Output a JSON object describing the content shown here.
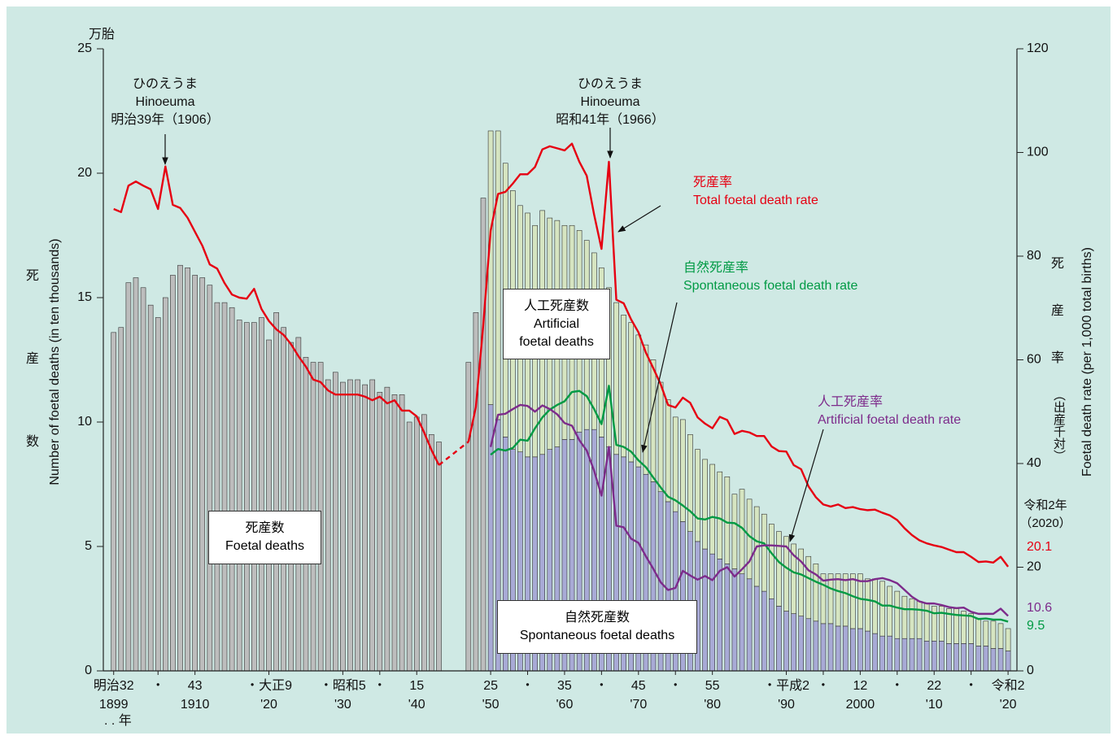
{
  "chart_data": {
    "type": "bar",
    "y_unit": "万胎",
    "y_label": "Number of foetal deaths (in ten thousands)",
    "y_label_ja": "死\n産\n数",
    "y2_label": "Foetal death rate (per 1,000 total births)",
    "y2_label_ja": "死\n産\n率",
    "y2_label_ja_note": "（出産千対）",
    "x_unit": ". . 年",
    "end_year_label": "令和2年\n（2020）",
    "annotations": [
      "ひのえうま\nHinoeuma\n明治39年（1906）",
      "ひのえうま\nHinoeuma\n昭和41年（1966）"
    ],
    "xlim": [
      1897.6,
      2021.2
    ],
    "ylim": [
      0,
      25
    ],
    "y2lim": [
      0,
      120
    ],
    "yticks": [
      0,
      5,
      10,
      15,
      20,
      25
    ],
    "y2ticks": [
      0,
      20,
      40,
      60,
      80,
      100,
      120
    ],
    "xticks": [
      {
        "value": 1899,
        "label": "明治32\n1899"
      },
      {
        "value": 1905,
        "label": "・"
      },
      {
        "value": 1910,
        "label": "43\n1910"
      },
      {
        "value": 1920,
        "label": "・大正9\n'20"
      },
      {
        "value": 1930,
        "label": "・昭和5\n'30"
      },
      {
        "value": 1935,
        "label": "・"
      },
      {
        "value": 1940,
        "label": "15\n'40"
      },
      {
        "value": 1950,
        "label": "25\n'50"
      },
      {
        "value": 1955,
        "label": "・"
      },
      {
        "value": 1960,
        "label": "35\n'60"
      },
      {
        "value": 1965,
        "label": "・"
      },
      {
        "value": 1970,
        "label": "45\n'70"
      },
      {
        "value": 1975,
        "label": "・"
      },
      {
        "value": 1980,
        "label": "55\n'80"
      },
      {
        "value": 1990,
        "label": "・平成2\n'90"
      },
      {
        "value": 1995,
        "label": "・"
      },
      {
        "value": 2000,
        "label": "12\n2000"
      },
      {
        "value": 2005,
        "label": "・"
      },
      {
        "value": 2010,
        "label": "22\n'10"
      },
      {
        "value": 2015,
        "label": "・"
      },
      {
        "value": 2020,
        "label": "令和2\n'20"
      }
    ],
    "x": [
      1899,
      1900,
      1901,
      1902,
      1903,
      1904,
      1905,
      1906,
      1907,
      1908,
      1909,
      1910,
      1911,
      1912,
      1913,
      1914,
      1915,
      1916,
      1917,
      1918,
      1919,
      1920,
      1921,
      1922,
      1923,
      1924,
      1925,
      1926,
      1927,
      1928,
      1929,
      1930,
      1931,
      1932,
      1933,
      1934,
      1935,
      1936,
      1937,
      1938,
      1939,
      1940,
      1941,
      1942,
      1943,
      1944,
      1945,
      1946,
      1947,
      1948,
      1949,
      1950,
      1951,
      1952,
      1953,
      1954,
      1955,
      1956,
      1957,
      1958,
      1959,
      1960,
      1961,
      1962,
      1963,
      1964,
      1965,
      1966,
      1967,
      1968,
      1969,
      1970,
      1971,
      1972,
      1973,
      1974,
      1975,
      1976,
      1977,
      1978,
      1979,
      1980,
      1981,
      1982,
      1983,
      1984,
      1985,
      1986,
      1987,
      1988,
      1989,
      1990,
      1991,
      1992,
      1993,
      1994,
      1995,
      1996,
      1997,
      1998,
      1999,
      2000,
      2001,
      2002,
      2003,
      2004,
      2005,
      2006,
      2007,
      2008,
      2009,
      2010,
      2011,
      2012,
      2013,
      2014,
      2015,
      2016,
      2017,
      2018,
      2019,
      2020
    ],
    "series": [
      {
        "name": "死産数\nFoetal deaths",
        "type": "bar",
        "color": "#bdbdbd",
        "values": [
          13.6,
          13.8,
          15.6,
          15.8,
          15.4,
          14.7,
          14.2,
          15.0,
          15.9,
          16.3,
          16.2,
          15.9,
          15.8,
          15.5,
          14.8,
          14.8,
          14.6,
          14.1,
          14.0,
          14.0,
          14.2,
          13.3,
          14.4,
          13.8,
          13.2,
          13.4,
          12.6,
          12.4,
          12.4,
          11.7,
          12.0,
          11.6,
          11.7,
          11.7,
          11.5,
          11.7,
          11.2,
          11.4,
          11.1,
          11.1,
          10.0,
          10.2,
          10.3,
          9.5,
          9.2,
          null,
          null,
          null,
          12.4,
          14.4,
          19.0,
          null,
          null,
          null,
          null,
          null,
          null,
          null,
          null,
          null,
          null,
          null,
          null,
          null,
          null,
          null,
          null,
          null,
          null,
          null,
          null,
          null,
          null,
          null,
          null,
          null,
          null,
          null,
          null,
          null,
          null,
          null,
          null,
          null,
          null,
          null,
          null,
          null,
          null,
          null,
          null,
          null,
          null,
          null,
          null,
          null,
          null,
          null,
          null,
          null,
          null,
          null,
          null,
          null,
          null,
          null,
          null,
          null,
          null,
          null,
          null,
          null,
          null,
          null,
          null,
          null,
          null,
          null,
          null,
          null,
          null,
          null
        ]
      },
      {
        "name": "自然死産数\nSpontaneous foetal deaths",
        "type": "bar",
        "color": "#a8aad6",
        "values": [
          null,
          null,
          null,
          null,
          null,
          null,
          null,
          null,
          null,
          null,
          null,
          null,
          null,
          null,
          null,
          null,
          null,
          null,
          null,
          null,
          null,
          null,
          null,
          null,
          null,
          null,
          null,
          null,
          null,
          null,
          null,
          null,
          null,
          null,
          null,
          null,
          null,
          null,
          null,
          null,
          null,
          null,
          null,
          null,
          null,
          null,
          null,
          null,
          null,
          null,
          null,
          10.7,
          10.1,
          9.4,
          8.9,
          8.8,
          8.6,
          8.6,
          8.7,
          8.9,
          9.0,
          9.3,
          9.3,
          9.6,
          9.7,
          9.7,
          9.4,
          9.0,
          8.7,
          8.6,
          8.4,
          8.2,
          7.9,
          7.6,
          7.2,
          6.8,
          6.4,
          6.0,
          5.6,
          5.2,
          4.9,
          4.7,
          4.5,
          4.3,
          4.1,
          3.9,
          3.7,
          3.4,
          3.2,
          2.9,
          2.6,
          2.4,
          2.3,
          2.2,
          2.1,
          2.0,
          1.9,
          1.9,
          1.8,
          1.8,
          1.7,
          1.7,
          1.6,
          1.5,
          1.4,
          1.4,
          1.3,
          1.3,
          1.3,
          1.3,
          1.2,
          1.2,
          1.2,
          1.1,
          1.1,
          1.1,
          1.1,
          1.0,
          1.0,
          0.9,
          0.9,
          0.8
        ]
      },
      {
        "name": "人工死産数\nArtificial\nfoetal deaths",
        "type": "bar",
        "color": "#d6e5c1",
        "values": [
          null,
          null,
          null,
          null,
          null,
          null,
          null,
          null,
          null,
          null,
          null,
          null,
          null,
          null,
          null,
          null,
          null,
          null,
          null,
          null,
          null,
          null,
          null,
          null,
          null,
          null,
          null,
          null,
          null,
          null,
          null,
          null,
          null,
          null,
          null,
          null,
          null,
          null,
          null,
          null,
          null,
          null,
          null,
          null,
          null,
          null,
          null,
          null,
          null,
          null,
          null,
          11.0,
          11.6,
          11.0,
          10.4,
          9.9,
          9.8,
          9.3,
          9.8,
          9.3,
          9.1,
          8.6,
          8.6,
          8.1,
          7.6,
          7.1,
          6.8,
          6.4,
          6.1,
          5.7,
          5.6,
          5.3,
          5.2,
          4.9,
          4.4,
          4.1,
          3.8,
          4.1,
          3.9,
          3.7,
          3.6,
          3.6,
          3.5,
          3.5,
          3.0,
          3.4,
          3.2,
          3.2,
          3.1,
          3.0,
          3.0,
          3.0,
          2.8,
          2.7,
          2.5,
          2.3,
          2.0,
          2.0,
          2.1,
          2.1,
          2.2,
          2.2,
          2.1,
          2.2,
          2.2,
          2.0,
          1.9,
          1.7,
          1.6,
          1.5,
          1.5,
          1.4,
          1.4,
          1.4,
          1.4,
          1.3,
          1.2,
          1.1,
          1.0,
          1.1,
          1.0,
          0.9
        ]
      },
      {
        "name": "死産率\nTotal foetal death rate",
        "type": "line",
        "axis": "y2",
        "color": "#e60012",
        "gap_style": "dashed",
        "values": [
          89.1,
          88.5,
          93.6,
          94.4,
          93.6,
          92.9,
          89.1,
          97.3,
          89.9,
          89.3,
          87.4,
          84.7,
          82.0,
          78.4,
          77.6,
          74.8,
          72.6,
          72.0,
          71.8,
          73.7,
          69.8,
          67.5,
          65.9,
          64.8,
          63.0,
          60.7,
          58.7,
          56.2,
          55.7,
          54.1,
          53.3,
          53.3,
          53.3,
          53.3,
          52.9,
          52.2,
          52.9,
          51.6,
          52.2,
          50.2,
          50.2,
          49.1,
          46.0,
          42.6,
          39.7,
          null,
          null,
          null,
          44.2,
          50.9,
          66.7,
          84.9,
          92.0,
          92.4,
          94.0,
          95.8,
          95.8,
          97.2,
          100.6,
          101.2,
          100.8,
          100.4,
          101.7,
          98.2,
          95.5,
          88.0,
          81.4,
          98.2,
          71.6,
          70.9,
          67.8,
          65.3,
          61.4,
          58.4,
          55.3,
          51.3,
          50.8,
          52.7,
          51.7,
          48.9,
          47.7,
          46.8,
          49.0,
          48.4,
          45.7,
          46.3,
          46.0,
          45.3,
          45.3,
          43.3,
          42.4,
          42.3,
          39.7,
          38.9,
          35.6,
          33.5,
          32.1,
          31.7,
          32.1,
          31.4,
          31.6,
          31.2,
          31.0,
          31.1,
          30.5,
          30.0,
          29.1,
          27.5,
          26.2,
          25.2,
          24.6,
          24.2,
          23.9,
          23.4,
          22.9,
          22.9,
          22.0,
          21.0,
          21.1,
          20.9,
          22.0,
          20.1
        ]
      },
      {
        "name": "自然死産率\nSpontaneous foetal death rate",
        "type": "line",
        "axis": "y2",
        "color": "#009a44",
        "values": [
          null,
          null,
          null,
          null,
          null,
          null,
          null,
          null,
          null,
          null,
          null,
          null,
          null,
          null,
          null,
          null,
          null,
          null,
          null,
          null,
          null,
          null,
          null,
          null,
          null,
          null,
          null,
          null,
          null,
          null,
          null,
          null,
          null,
          null,
          null,
          null,
          null,
          null,
          null,
          null,
          null,
          null,
          null,
          null,
          null,
          null,
          null,
          null,
          null,
          null,
          null,
          41.7,
          42.8,
          42.5,
          43.0,
          44.6,
          44.4,
          46.8,
          48.9,
          50.4,
          51.3,
          52.0,
          53.8,
          54.0,
          53.0,
          50.5,
          47.6,
          55.0,
          43.6,
          43.2,
          42.3,
          40.6,
          39.3,
          37.3,
          35.4,
          33.6,
          32.9,
          31.9,
          30.8,
          29.4,
          29.2,
          29.7,
          29.4,
          28.6,
          28.5,
          27.6,
          26.0,
          25.0,
          24.6,
          22.7,
          21.0,
          19.9,
          19.0,
          18.6,
          17.9,
          17.2,
          16.6,
          15.9,
          15.4,
          15.0,
          14.4,
          13.9,
          13.7,
          13.4,
          12.6,
          12.6,
          12.2,
          11.9,
          11.9,
          11.8,
          11.6,
          11.1,
          11.2,
          11.0,
          10.8,
          10.7,
          10.6,
          10.0,
          10.1,
          9.9,
          9.9,
          9.5
        ]
      },
      {
        "name": "人工死産率\nArtificial foetal death rate",
        "type": "line",
        "axis": "y2",
        "color": "#7d2b8b",
        "values": [
          null,
          null,
          null,
          null,
          null,
          null,
          null,
          null,
          null,
          null,
          null,
          null,
          null,
          null,
          null,
          null,
          null,
          null,
          null,
          null,
          null,
          null,
          null,
          null,
          null,
          null,
          null,
          null,
          null,
          null,
          null,
          null,
          null,
          null,
          null,
          null,
          null,
          null,
          null,
          null,
          null,
          null,
          null,
          null,
          null,
          null,
          null,
          null,
          null,
          null,
          null,
          43.2,
          49.4,
          49.6,
          50.5,
          51.3,
          51.1,
          50.0,
          51.2,
          50.5,
          49.5,
          47.8,
          47.3,
          44.5,
          42.5,
          38.6,
          33.8,
          43.2,
          28.0,
          27.7,
          25.5,
          24.7,
          22.1,
          19.7,
          17.1,
          15.6,
          16.0,
          19.3,
          18.4,
          17.6,
          18.3,
          17.5,
          19.3,
          20.0,
          18.2,
          19.6,
          21.1,
          24.0,
          24.2,
          24.2,
          24.1,
          24.0,
          22.3,
          21.1,
          19.4,
          18.6,
          17.4,
          17.6,
          17.7,
          17.5,
          17.7,
          17.3,
          17.3,
          17.7,
          17.9,
          17.5,
          16.9,
          15.6,
          14.3,
          13.4,
          13.0,
          13.0,
          12.7,
          12.3,
          12.1,
          12.2,
          11.4,
          11.0,
          11.0,
          11.0,
          12.0,
          10.6
        ]
      }
    ]
  }
}
